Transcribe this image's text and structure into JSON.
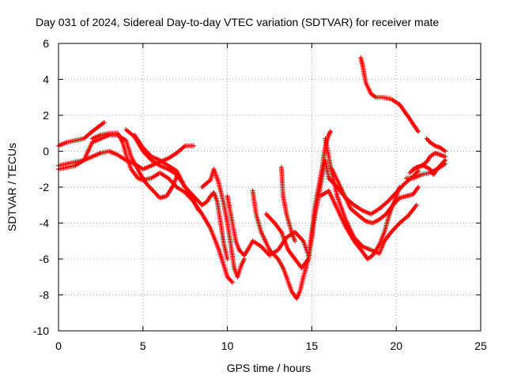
{
  "chart_data": {
    "type": "scatter",
    "title": "Day 031 of 2024, Sidereal Day-to-day VTEC variation (SDTVAR) for receiver mate",
    "xlabel": "GPS time / hours",
    "ylabel": "SDTVAR / TECUs",
    "xlim": [
      0,
      25
    ],
    "ylim": [
      -10,
      6
    ],
    "xticks": [
      "0",
      "5",
      "10",
      "15",
      "20",
      "25"
    ],
    "yticks": [
      "-10",
      "-8",
      "-6",
      "-4",
      "-2",
      "0",
      "2",
      "4",
      "6"
    ],
    "grid": true,
    "legend": "none",
    "marker": "plus",
    "color": "#ff0000",
    "series": [
      {
        "points": [
          [
            0.0,
            0.3
          ],
          [
            0.5,
            0.5
          ],
          [
            1.0,
            0.6
          ],
          [
            1.5,
            0.7
          ],
          [
            2.0,
            1.1
          ],
          [
            2.7,
            1.6
          ]
        ]
      },
      {
        "points": [
          [
            0.0,
            -0.8
          ],
          [
            0.5,
            -0.7
          ],
          [
            1.0,
            -0.6
          ],
          [
            1.5,
            -0.5
          ],
          [
            2.0,
            -0.3
          ],
          [
            2.5,
            -0.1
          ],
          [
            3.0,
            0.0
          ],
          [
            3.5,
            -0.2
          ],
          [
            4.0,
            -0.5
          ],
          [
            4.5,
            -0.7
          ],
          [
            5.0,
            -1.0
          ],
          [
            5.5,
            -0.8
          ],
          [
            6.0,
            -0.6
          ],
          [
            6.5,
            -0.4
          ],
          [
            7.0,
            -0.1
          ],
          [
            7.5,
            0.3
          ],
          [
            8.0,
            0.3
          ]
        ]
      },
      {
        "points": [
          [
            0.0,
            -1.0
          ],
          [
            0.5,
            -0.9
          ],
          [
            1.0,
            -0.8
          ],
          [
            1.5,
            -0.5
          ],
          [
            2.0,
            0.5
          ],
          [
            2.5,
            0.7
          ],
          [
            3.0,
            0.9
          ],
          [
            3.5,
            0.9
          ],
          [
            4.0,
            0.6
          ],
          [
            4.3,
            -0.3
          ],
          [
            4.8,
            -1.2
          ],
          [
            5.2,
            -1.8
          ],
          [
            5.6,
            -2.2
          ],
          [
            6.0,
            -2.6
          ],
          [
            6.4,
            -2.5
          ],
          [
            6.8,
            -1.9
          ],
          [
            7.0,
            -1.4
          ]
        ]
      },
      {
        "points": [
          [
            2.0,
            0.7
          ],
          [
            2.5,
            0.9
          ],
          [
            3.0,
            1.0
          ],
          [
            3.5,
            1.0
          ],
          [
            3.8,
            0.5
          ],
          [
            4.0,
            -0.2
          ],
          [
            4.3,
            -1.0
          ],
          [
            4.7,
            -1.5
          ],
          [
            5.0,
            -1.6
          ],
          [
            5.5,
            -1.5
          ],
          [
            6.0,
            -1.2
          ],
          [
            6.5,
            -1.5
          ],
          [
            7.0,
            -2.0
          ],
          [
            7.5,
            -2.3
          ],
          [
            8.0,
            -2.8
          ],
          [
            8.5,
            -3.5
          ],
          [
            9.0,
            -4.3
          ],
          [
            9.5,
            -5.5
          ],
          [
            10.0,
            -7.0
          ],
          [
            10.3,
            -7.3
          ]
        ]
      },
      {
        "points": [
          [
            4.0,
            1.2
          ],
          [
            4.5,
            0.8
          ],
          [
            5.0,
            0.0
          ],
          [
            5.5,
            -0.5
          ],
          [
            6.0,
            -0.8
          ],
          [
            6.5,
            -1.0
          ],
          [
            7.0,
            -1.3
          ],
          [
            7.5,
            -2.0
          ],
          [
            8.0,
            -2.5
          ],
          [
            8.5,
            -3.0
          ],
          [
            8.8,
            -2.8
          ],
          [
            9.0,
            -2.5
          ],
          [
            9.2,
            -2.3
          ],
          [
            9.4,
            -2.8
          ],
          [
            9.6,
            -4.0
          ],
          [
            9.8,
            -5.2
          ],
          [
            10.0,
            -6.0
          ]
        ]
      },
      {
        "points": [
          [
            4.5,
            0.9
          ],
          [
            5.0,
            0.2
          ],
          [
            5.5,
            -0.3
          ],
          [
            6.0,
            -0.5
          ],
          [
            6.5,
            -0.8
          ],
          [
            7.0,
            -1.1
          ],
          [
            7.5,
            -2.0
          ],
          [
            7.8,
            -2.4
          ],
          [
            8.0,
            -2.8
          ],
          [
            8.3,
            -3.3
          ]
        ]
      },
      {
        "points": [
          [
            8.5,
            -2.0
          ],
          [
            9.0,
            -1.6
          ],
          [
            9.2,
            -1.0
          ],
          [
            9.5,
            -1.8
          ],
          [
            9.8,
            -3.0
          ],
          [
            10.0,
            -4.0
          ],
          [
            10.2,
            -5.2
          ],
          [
            10.4,
            -6.5
          ],
          [
            10.6,
            -7.0
          ],
          [
            10.8,
            -6.4
          ],
          [
            11.0,
            -6.0
          ]
        ]
      },
      {
        "points": [
          [
            10.0,
            -2.5
          ],
          [
            10.2,
            -3.5
          ],
          [
            10.5,
            -5.0
          ],
          [
            10.7,
            -5.5
          ],
          [
            11.0,
            -5.8
          ],
          [
            11.2,
            -5.5
          ],
          [
            11.5,
            -5.0
          ],
          [
            12.0,
            -5.3
          ],
          [
            12.5,
            -5.8
          ],
          [
            13.0,
            -5.5
          ],
          [
            13.5,
            -4.8
          ],
          [
            14.0,
            -4.5
          ],
          [
            14.5,
            -5.0
          ],
          [
            14.8,
            -5.8
          ]
        ]
      },
      {
        "points": [
          [
            11.5,
            -2.2
          ],
          [
            11.7,
            -3.5
          ],
          [
            12.0,
            -4.5
          ],
          [
            12.5,
            -5.5
          ],
          [
            13.0,
            -6.0
          ],
          [
            13.3,
            -6.5
          ],
          [
            13.5,
            -7.0
          ],
          [
            13.8,
            -7.8
          ],
          [
            14.1,
            -8.2
          ],
          [
            14.3,
            -7.8
          ],
          [
            14.5,
            -7.0
          ],
          [
            14.8,
            -6.0
          ],
          [
            15.0,
            -4.5
          ],
          [
            15.2,
            -3.0
          ],
          [
            15.4,
            -2.0
          ],
          [
            15.6,
            -1.0
          ],
          [
            15.8,
            0.3
          ],
          [
            16.0,
            0.9
          ],
          [
            16.1,
            1.1
          ]
        ]
      },
      {
        "points": [
          [
            12.3,
            -3.5
          ],
          [
            12.8,
            -4.0
          ],
          [
            13.2,
            -4.5
          ],
          [
            13.6,
            -5.5
          ],
          [
            14.0,
            -6.0
          ],
          [
            14.4,
            -6.5
          ],
          [
            14.8,
            -6.0
          ],
          [
            15.0,
            -4.8
          ],
          [
            15.2,
            -3.5
          ],
          [
            15.4,
            -2.5
          ],
          [
            15.6,
            -1.5
          ],
          [
            15.8,
            -0.5
          ],
          [
            16.0,
            -1.5
          ],
          [
            16.5,
            -2.0
          ],
          [
            17.0,
            -2.6
          ],
          [
            17.5,
            -3.0
          ],
          [
            18.0,
            -3.3
          ],
          [
            18.5,
            -3.5
          ],
          [
            19.0,
            -3.2
          ],
          [
            19.5,
            -2.8
          ],
          [
            20.0,
            -2.3
          ],
          [
            20.5,
            -1.8
          ],
          [
            21.0,
            -1.4
          ],
          [
            21.3,
            -1.1
          ]
        ]
      },
      {
        "points": [
          [
            13.2,
            -0.9
          ],
          [
            13.3,
            -2.5
          ],
          [
            13.5,
            -3.5
          ],
          [
            13.8,
            -4.5
          ],
          [
            14.0,
            -5.0
          ]
        ]
      },
      {
        "points": [
          [
            15.5,
            -2.5
          ],
          [
            16.0,
            -2.2
          ],
          [
            16.5,
            -3.2
          ],
          [
            17.0,
            -4.2
          ],
          [
            17.5,
            -5.0
          ],
          [
            18.0,
            -5.6
          ],
          [
            18.3,
            -6.0
          ],
          [
            18.6,
            -5.8
          ],
          [
            19.0,
            -5.2
          ],
          [
            19.3,
            -4.5
          ],
          [
            19.6,
            -3.5
          ],
          [
            20.0,
            -2.5
          ],
          [
            20.2,
            -2.0
          ]
        ]
      },
      {
        "points": [
          [
            15.8,
            0.7
          ],
          [
            16.1,
            -0.8
          ],
          [
            16.5,
            -2.5
          ],
          [
            17.0,
            -3.8
          ],
          [
            17.5,
            -4.8
          ],
          [
            18.0,
            -5.3
          ],
          [
            18.5,
            -5.5
          ],
          [
            19.0,
            -5.7
          ],
          [
            19.3,
            -5.0
          ],
          [
            19.7,
            -4.5
          ],
          [
            20.2,
            -4.0
          ],
          [
            20.7,
            -3.6
          ],
          [
            21.2,
            -3.0
          ]
        ]
      },
      {
        "points": [
          [
            16.2,
            -1.0
          ],
          [
            16.8,
            -2.2
          ],
          [
            17.3,
            -3.2
          ],
          [
            17.8,
            -3.6
          ],
          [
            18.2,
            -3.9
          ],
          [
            18.6,
            -4.0
          ],
          [
            19.0,
            -3.8
          ],
          [
            19.4,
            -3.5
          ],
          [
            19.8,
            -3.0
          ],
          [
            20.2,
            -2.6
          ],
          [
            20.6,
            -2.5
          ],
          [
            21.0,
            -2.4
          ],
          [
            21.3,
            -2.0
          ]
        ]
      },
      {
        "points": [
          [
            17.9,
            5.2
          ],
          [
            18.0,
            4.8
          ],
          [
            18.2,
            3.8
          ],
          [
            18.5,
            3.2
          ],
          [
            18.8,
            3.0
          ],
          [
            19.2,
            3.0
          ],
          [
            19.7,
            2.9
          ],
          [
            20.2,
            2.6
          ],
          [
            20.5,
            2.2
          ],
          [
            20.8,
            1.8
          ],
          [
            21.0,
            1.5
          ],
          [
            21.3,
            1.1
          ]
        ]
      },
      {
        "points": [
          [
            20.8,
            -1.2
          ],
          [
            21.2,
            -0.9
          ],
          [
            21.6,
            -0.8
          ],
          [
            22.0,
            -1.0
          ],
          [
            22.2,
            -1.3
          ],
          [
            22.5,
            -0.9
          ],
          [
            22.9,
            -0.5
          ]
        ]
      },
      {
        "points": [
          [
            21.0,
            -1.0
          ],
          [
            21.5,
            -0.8
          ],
          [
            21.8,
            -0.6
          ],
          [
            22.0,
            -0.3
          ],
          [
            22.3,
            -0.1
          ],
          [
            22.6,
            -0.2
          ],
          [
            22.9,
            -0.3
          ]
        ]
      },
      {
        "points": [
          [
            20.6,
            -1.5
          ],
          [
            21.0,
            -1.5
          ],
          [
            21.5,
            -1.3
          ],
          [
            22.0,
            -1.2
          ],
          [
            22.4,
            -1.0
          ],
          [
            22.9,
            -0.7
          ]
        ]
      },
      {
        "points": [
          [
            21.8,
            0.7
          ],
          [
            22.0,
            0.5
          ],
          [
            22.3,
            0.3
          ],
          [
            22.6,
            0.2
          ],
          [
            22.9,
            0.0
          ]
        ]
      }
    ]
  }
}
